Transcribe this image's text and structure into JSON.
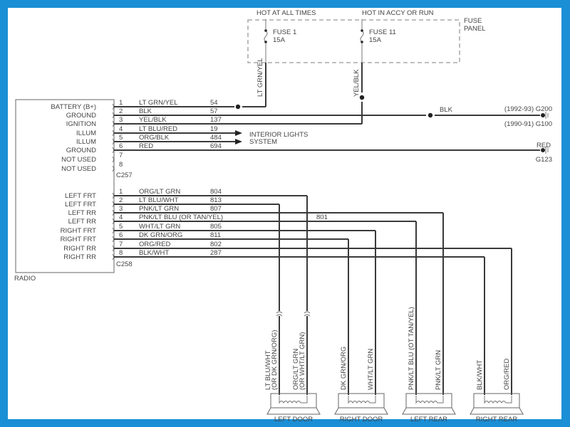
{
  "fuse_panel": {
    "label_line1": "FUSE",
    "label_line2": "PANEL",
    "feeds": [
      {
        "heading": "HOT AT ALL TIMES",
        "fuse": "FUSE 1",
        "rating": "15A",
        "wire": "LT GRN/YEL"
      },
      {
        "heading": "HOT IN ACCY OR RUN",
        "fuse": "FUSE 11",
        "rating": "15A",
        "wire": "YEL/BLK"
      }
    ]
  },
  "radio": {
    "label": "RADIO",
    "connector1": {
      "name": "C257",
      "pins": [
        {
          "pin": "1",
          "function": "BATTERY (B+)",
          "color": "LT GRN/YEL",
          "circuit": "54"
        },
        {
          "pin": "2",
          "function": "GROUND",
          "color": "BLK",
          "circuit": "57"
        },
        {
          "pin": "3",
          "function": "IGNITION",
          "color": "YEL/BLK",
          "circuit": "137"
        },
        {
          "pin": "4",
          "function": "ILLUM",
          "color": "LT BLU/RED",
          "circuit": "19"
        },
        {
          "pin": "5",
          "function": "ILLUM",
          "color": "ORG/BLK",
          "circuit": "484"
        },
        {
          "pin": "6",
          "function": "GROUND",
          "color": "RED",
          "circuit": "694"
        },
        {
          "pin": "7",
          "function": "NOT USED",
          "color": "",
          "circuit": ""
        },
        {
          "pin": "8",
          "function": "NOT USED",
          "color": "",
          "circuit": ""
        }
      ]
    },
    "connector2": {
      "name": "C258",
      "pins": [
        {
          "pin": "1",
          "function": "LEFT FRT",
          "color": "ORG/LT GRN",
          "circuit": "804"
        },
        {
          "pin": "2",
          "function": "LEFT FRT",
          "color": "LT BLU/WHT",
          "circuit": "813"
        },
        {
          "pin": "3",
          "function": "LEFT RR",
          "color": "PNK/LT GRN",
          "circuit": "807"
        },
        {
          "pin": "4",
          "function": "LEFT RR",
          "color": "PNK/LT BLU (OR TAN/YEL)",
          "circuit": "801"
        },
        {
          "pin": "5",
          "function": "RIGHT FRT",
          "color": "WHT/LT GRN",
          "circuit": "805"
        },
        {
          "pin": "6",
          "function": "RIGHT FRT",
          "color": "DK GRN/ORG",
          "circuit": "811"
        },
        {
          "pin": "7",
          "function": "RIGHT RR",
          "color": "ORG/RED",
          "circuit": "802"
        },
        {
          "pin": "8",
          "function": "RIGHT RR",
          "color": "BLK/WHT",
          "circuit": "287"
        }
      ]
    }
  },
  "grounds": {
    "blk_label": "BLK",
    "g200": "(1992-93) G200",
    "g100": "(1990-91) G100",
    "red_label": "RED",
    "g123": "G123"
  },
  "interior_lights": {
    "line1": "INTERIOR LIGHTS",
    "line2": "SYSTEM"
  },
  "speakers": [
    {
      "name": "LEFT DOOR",
      "wires": [
        [
          "LT BLU/WHT",
          "(OR DK GRN/ORG)"
        ],
        [
          "ORG/LT GRN",
          "(OR WHT/LT GRN)"
        ]
      ]
    },
    {
      "name": "RIGHT DOOR",
      "wires": [
        [
          "DK GRN/ORG"
        ],
        [
          "WHT/LT GRN"
        ]
      ]
    },
    {
      "name": "LEFT REAR",
      "wires": [
        [
          "PNK/LT BLU (OT TAN/YEL)"
        ],
        [
          "PNK/LT GRN"
        ]
      ]
    },
    {
      "name": "RIGHT REAR",
      "wires": [
        [
          "BLK/WHT"
        ],
        [
          "ORG/RED"
        ]
      ]
    }
  ],
  "colors": {
    "border": "#1a8fd6",
    "wire": "#3a3a3a",
    "text": "#444444"
  }
}
